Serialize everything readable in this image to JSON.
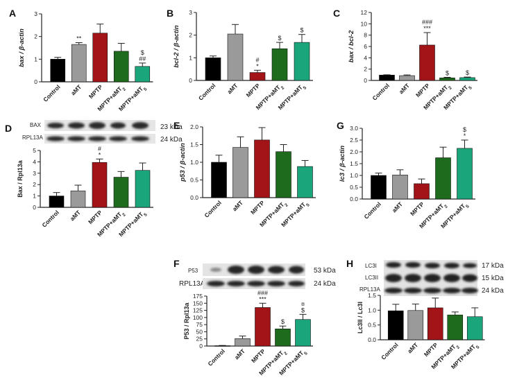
{
  "colors": {
    "Control": "#000000",
    "aMT": "#9a9a9a",
    "MPTP": "#a31418",
    "MPTP+aMT2": "#1e6b1e",
    "MPTP+aMT5": "#1aa57a"
  },
  "chart_data": [
    {
      "id": "A",
      "type": "bar",
      "panel": "A",
      "ylabel": "bax / β-actin",
      "ylim": [
        0,
        3
      ],
      "yticks": [
        0,
        1,
        2,
        3
      ],
      "categories": [
        "Control",
        "aMT",
        "MPTP",
        "MPTP+aMT2",
        "MPTP+aMT5"
      ],
      "values": [
        1.0,
        1.65,
        2.15,
        1.35,
        0.68
      ],
      "errors": [
        0.08,
        0.08,
        0.4,
        0.35,
        0.15
      ],
      "annotations": [
        [
          "",
          ""
        ],
        [
          "**",
          ""
        ],
        [
          "",
          ""
        ],
        [
          "",
          ""
        ],
        [
          "$",
          "##"
        ]
      ]
    },
    {
      "id": "B",
      "type": "bar",
      "panel": "B",
      "ylabel": "bcl-2 / β-actin",
      "ylim": [
        0,
        3
      ],
      "yticks": [
        0,
        1,
        2,
        3
      ],
      "categories": [
        "Control",
        "aMT",
        "MPTP",
        "MPTP+aMT2",
        "MPTP+aMT5"
      ],
      "values": [
        1.0,
        2.05,
        0.35,
        1.4,
        1.68
      ],
      "errors": [
        0.08,
        0.42,
        0.1,
        0.28,
        0.35
      ],
      "annotations": [
        [
          "",
          ""
        ],
        [
          "",
          ""
        ],
        [
          "#",
          "*"
        ],
        [
          "$",
          ""
        ],
        [
          "$",
          ""
        ]
      ]
    },
    {
      "id": "C",
      "type": "bar",
      "panel": "C",
      "ylabel": "bax / bcl-2",
      "ylim": [
        0,
        12
      ],
      "yticks": [
        0,
        2,
        4,
        6,
        8,
        10,
        12
      ],
      "categories": [
        "Control",
        "aMT",
        "MPTP",
        "MPTP+aMT2",
        "MPTP+aMT5"
      ],
      "values": [
        0.95,
        0.85,
        6.25,
        0.45,
        0.5
      ],
      "errors": [
        0.05,
        0.12,
        2.2,
        0.1,
        0.1
      ],
      "annotations": [
        [
          "",
          ""
        ],
        [
          "",
          ""
        ],
        [
          "###",
          "***"
        ],
        [
          "$",
          ""
        ],
        [
          "$",
          ""
        ]
      ]
    },
    {
      "id": "D",
      "type": "bar",
      "panel": "D",
      "ylabel": "Bax / Rpl13a",
      "ylim": [
        0,
        5
      ],
      "yticks": [
        0,
        1,
        2,
        3,
        4,
        5
      ],
      "categories": [
        "Control",
        "aMT",
        "MPTP",
        "MPTP+aMT2",
        "MPTP+aMT5"
      ],
      "values": [
        1.0,
        1.45,
        3.95,
        2.65,
        3.25
      ],
      "errors": [
        0.3,
        0.5,
        0.3,
        0.5,
        0.65
      ],
      "annotations": [
        [
          "",
          ""
        ],
        [
          "",
          ""
        ],
        [
          "#",
          "*"
        ],
        [
          "",
          ""
        ],
        [
          "",
          ""
        ]
      ]
    },
    {
      "id": "E",
      "type": "bar",
      "panel": "E",
      "ylabel": "p53 / β-actin",
      "ylim": [
        0,
        2.0
      ],
      "yticks": [
        0,
        0.5,
        1.0,
        1.5,
        2.0
      ],
      "categories": [
        "Control",
        "aMT",
        "MPTP",
        "MPTP+aMT2",
        "MPTP+aMT5"
      ],
      "values": [
        1.0,
        1.42,
        1.63,
        1.3,
        0.88
      ],
      "errors": [
        0.2,
        0.3,
        0.35,
        0.2,
        0.17
      ],
      "annotations": [
        [
          "",
          ""
        ],
        [
          "",
          ""
        ],
        [
          "",
          ""
        ],
        [
          "",
          ""
        ],
        [
          "",
          ""
        ]
      ]
    },
    {
      "id": "G",
      "type": "bar",
      "panel": "G",
      "ylabel": "lc3 / β-actin",
      "ylim": [
        0,
        3.0
      ],
      "yticks": [
        0,
        0.5,
        1.0,
        1.5,
        2.0,
        2.5,
        3.0
      ],
      "categories": [
        "Control",
        "aMT",
        "MPTP",
        "MPTP+aMT2",
        "MPTP+aMT5"
      ],
      "values": [
        1.0,
        1.02,
        0.65,
        1.75,
        2.15
      ],
      "errors": [
        0.1,
        0.22,
        0.2,
        0.45,
        0.35
      ],
      "annotations": [
        [
          "",
          ""
        ],
        [
          "",
          ""
        ],
        [
          "",
          ""
        ],
        [
          "",
          ""
        ],
        [
          "$",
          "*"
        ]
      ]
    },
    {
      "id": "F",
      "type": "bar",
      "panel": "F",
      "ylabel": "P53 / Rpl13a",
      "ylim": [
        0,
        175
      ],
      "yticks": [
        0,
        25,
        50,
        75,
        100,
        125,
        150,
        175
      ],
      "categories": [
        "Control",
        "aMT",
        "MPTP",
        "MPTP+aMT2",
        "MPTP+aMT5"
      ],
      "values": [
        1,
        26,
        135,
        60,
        93
      ],
      "errors": [
        1,
        9,
        15,
        10,
        18
      ],
      "annotations": [
        [
          "",
          ""
        ],
        [
          "",
          ""
        ],
        [
          "###",
          "***"
        ],
        [
          "$",
          ""
        ],
        [
          "¤",
          "$"
        ]
      ]
    },
    {
      "id": "H",
      "type": "bar",
      "panel": "H",
      "ylabel": "Lc3II / Lc3I",
      "ylim": [
        0,
        1.5
      ],
      "yticks": [
        0,
        0.5,
        1.0,
        1.5
      ],
      "categories": [
        "Control",
        "aMT",
        "MPTP",
        "MPTP+aMT2",
        "MPTP+aMT5"
      ],
      "values": [
        0.98,
        0.99,
        1.08,
        0.84,
        0.78
      ],
      "errors": [
        0.22,
        0.22,
        0.33,
        0.1,
        0.3
      ],
      "annotations": [
        [
          "",
          ""
        ],
        [
          "",
          ""
        ],
        [
          "",
          ""
        ],
        [
          "",
          ""
        ],
        [
          "",
          ""
        ]
      ]
    }
  ],
  "blots": {
    "D": {
      "rows": [
        {
          "label": "BAX",
          "kda": "23 kDa"
        },
        {
          "label": "RPL13A",
          "kda": "24 kDa"
        }
      ]
    },
    "F": {
      "rows": [
        {
          "label": "P53",
          "kda": "53 kDa"
        },
        {
          "label": "RPL13A",
          "kda": "24 kDa"
        }
      ]
    },
    "H": {
      "rows": [
        {
          "label": "LC3I",
          "kda": "17 kDa"
        },
        {
          "label": "LC3II",
          "kda": "15 kDa"
        },
        {
          "label": "RPL13A",
          "kda": "24 kDa"
        }
      ]
    }
  }
}
